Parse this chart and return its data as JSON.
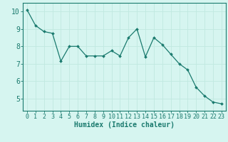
{
  "x": [
    0,
    1,
    2,
    3,
    4,
    5,
    6,
    7,
    8,
    9,
    10,
    11,
    12,
    13,
    14,
    15,
    16,
    17,
    18,
    19,
    20,
    21,
    22,
    23
  ],
  "y": [
    10.1,
    9.2,
    8.85,
    8.75,
    7.15,
    8.0,
    8.0,
    7.45,
    7.45,
    7.45,
    7.75,
    7.45,
    8.5,
    9.0,
    7.4,
    8.5,
    8.1,
    7.55,
    7.0,
    6.65,
    5.65,
    5.15,
    4.8,
    4.7
  ],
  "line_color": "#1a7a6e",
  "marker": "D",
  "marker_size": 2.0,
  "bg_color": "#d6f5f0",
  "grid_color": "#c0e8e0",
  "xlabel": "Humidex (Indice chaleur)",
  "xlabel_fontsize": 7,
  "tick_fontsize": 6,
  "ylim": [
    4.3,
    10.5
  ],
  "xlim": [
    -0.5,
    23.5
  ],
  "yticks": [
    5,
    6,
    7,
    8,
    9,
    10
  ],
  "xticks": [
    0,
    1,
    2,
    3,
    4,
    5,
    6,
    7,
    8,
    9,
    10,
    11,
    12,
    13,
    14,
    15,
    16,
    17,
    18,
    19,
    20,
    21,
    22,
    23
  ]
}
